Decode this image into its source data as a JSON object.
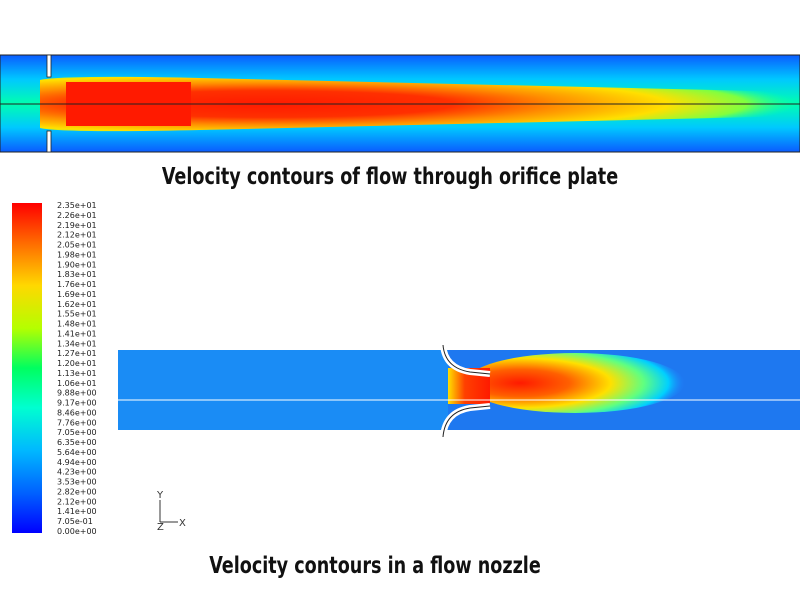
{
  "orifice_panel": {
    "caption": "Velocity contours of flow through orifice plate"
  },
  "nozzle_panel": {
    "caption": "Velocity contours in a flow nozzle",
    "axes": {
      "y": "Y",
      "z": "Z",
      "x": "X"
    }
  },
  "colorbar": {
    "labels": [
      "2.35e+01",
      "2.26e+01",
      "2.19e+01",
      "2.12e+01",
      "2.05e+01",
      "1.98e+01",
      "1.90e+01",
      "1.83e+01",
      "1.76e+01",
      "1.69e+01",
      "1.62e+01",
      "1.55e+01",
      "1.48e+01",
      "1.41e+01",
      "1.34e+01",
      "1.27e+01",
      "1.20e+01",
      "1.13e+01",
      "1.06e+01",
      "9.88e+00",
      "9.17e+00",
      "8.46e+00",
      "7.76e+00",
      "7.05e+00",
      "6.35e+00",
      "5.64e+00",
      "4.94e+00",
      "4.23e+00",
      "3.53e+00",
      "2.82e+00",
      "2.12e+00",
      "1.41e+00",
      "7.05e-01",
      "0.00e+00"
    ]
  }
}
